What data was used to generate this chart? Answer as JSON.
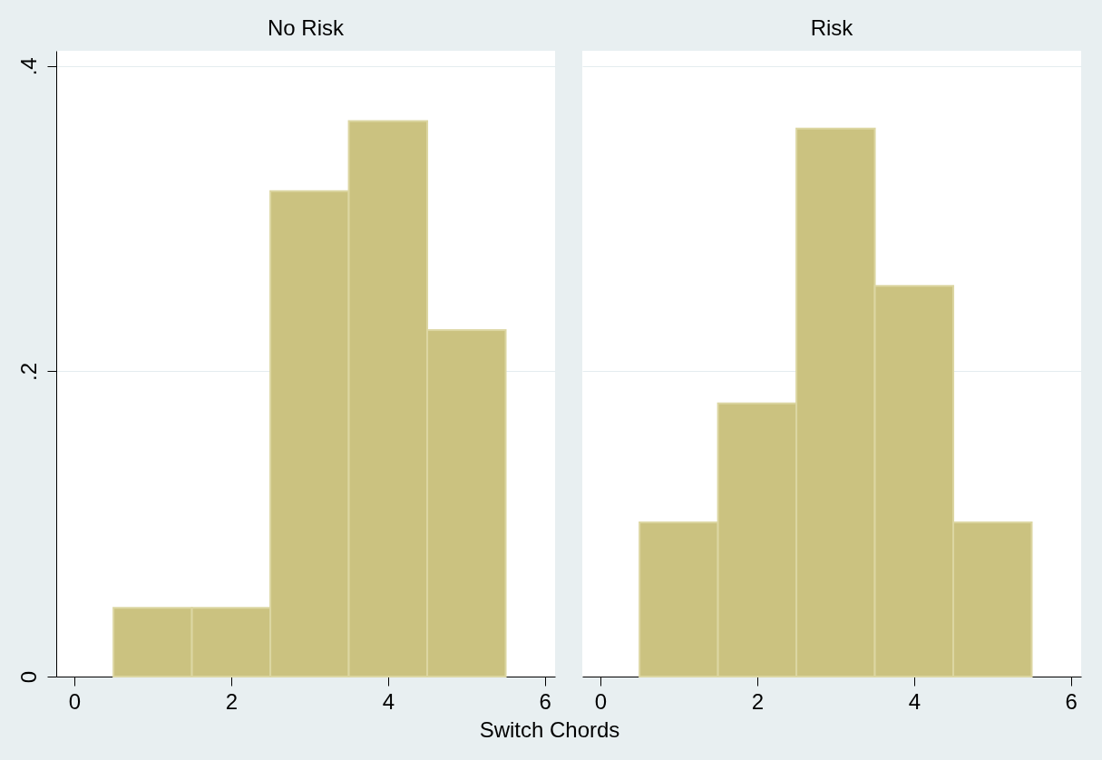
{
  "chart_data": [
    {
      "type": "histogram",
      "title": "No Risk",
      "xlabel": "Switch Chords",
      "bins": [
        0.5,
        1.5,
        2.5,
        3.5,
        4.5,
        5.5
      ],
      "values": [
        0.045,
        0.045,
        0.318,
        0.364,
        0.227
      ],
      "color": "#cbc280",
      "xlim": [
        -0.23,
        6.13
      ],
      "xticks": [
        0,
        2,
        4,
        6
      ],
      "ylim": [
        0,
        0.41
      ],
      "yticks": [
        0,
        {
          "value": 0.2,
          "label": ".2"
        },
        {
          "value": 0.4,
          "label": ".4"
        }
      ],
      "grid": "y"
    },
    {
      "type": "histogram",
      "title": "Risk",
      "bins": [
        0.5,
        1.5,
        2.5,
        3.5,
        4.5,
        5.5
      ],
      "values": [
        0.101,
        0.179,
        0.359,
        0.256,
        0.101
      ],
      "color": "#cbc280",
      "xlim": [
        -0.23,
        6.13
      ],
      "xticks": [
        0,
        2,
        4,
        6
      ],
      "ylim": [
        0,
        0.41
      ],
      "yticks": [
        0,
        0.2,
        0.4
      ],
      "grid": "y",
      "tick_labels": "x"
    }
  ]
}
